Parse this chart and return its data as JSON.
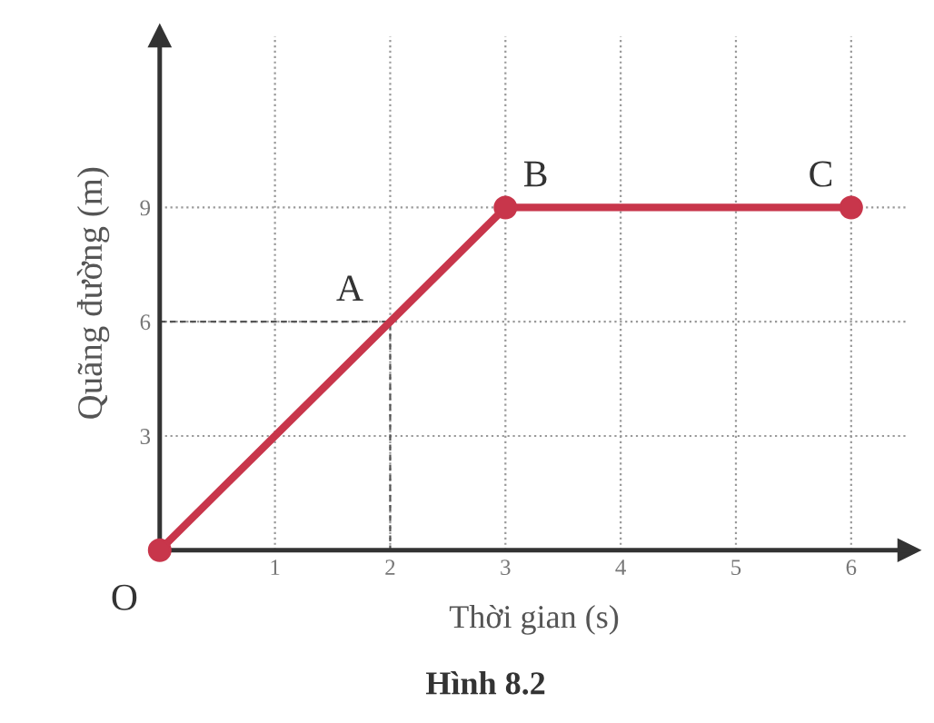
{
  "chart_data": {
    "type": "line",
    "xlabel": "Thời gian (s)",
    "ylabel": "Quãng đường (m)",
    "x": [
      0,
      1,
      2,
      3,
      4,
      5,
      6
    ],
    "series": [
      {
        "color": "#c8364b",
        "values": [
          0,
          3,
          6,
          9,
          9,
          9,
          9
        ]
      },
      {
        "type": "scatter",
        "color": "#c8364b",
        "x": [
          0,
          3,
          6
        ],
        "values": [
          0,
          9,
          9
        ],
        "marker": "circle"
      },
      {
        "color": "#555555",
        "x": [
          0,
          2,
          2
        ],
        "values": [
          6,
          6,
          0
        ],
        "line_style": "dashed"
      }
    ],
    "xlim": [
      0,
      6.5
    ],
    "ylim": [
      0,
      13.5
    ],
    "xticks": [
      1,
      2,
      3,
      4,
      5,
      6
    ],
    "yticks": [
      3,
      6,
      9
    ],
    "grid": "dotted",
    "annotations": [
      {
        "text": "O",
        "x": 0,
        "y": 0
      },
      {
        "text": "A",
        "x": 2,
        "y": 6
      },
      {
        "text": "B",
        "x": 3,
        "y": 9
      },
      {
        "text": "C",
        "x": 6,
        "y": 9
      },
      "Hình 8.2"
    ]
  }
}
